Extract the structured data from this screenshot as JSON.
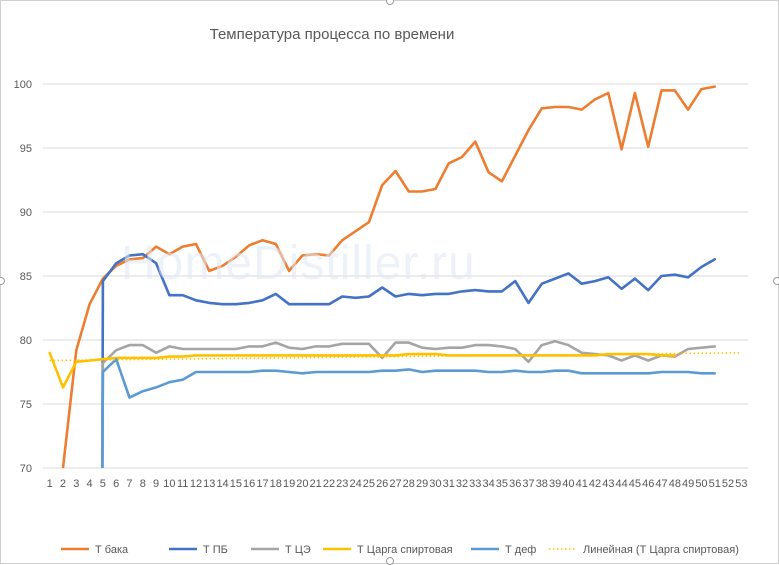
{
  "chart_data": {
    "type": "line",
    "title": "Температура процесса по времени",
    "xlabel": "",
    "ylabel": "",
    "x_ticks": [
      1,
      2,
      3,
      4,
      5,
      6,
      7,
      8,
      9,
      10,
      11,
      12,
      13,
      14,
      15,
      16,
      17,
      18,
      19,
      20,
      21,
      22,
      23,
      24,
      25,
      26,
      27,
      28,
      29,
      30,
      31,
      32,
      33,
      34,
      35,
      36,
      37,
      38,
      39,
      40,
      41,
      42,
      43,
      44,
      45,
      46,
      47,
      48,
      49,
      50,
      51,
      52,
      53
    ],
    "xlim": [
      1,
      53
    ],
    "ylim": [
      70,
      100
    ],
    "y_ticks": [
      70,
      75,
      80,
      85,
      90,
      95,
      100
    ],
    "grid": "horizontal",
    "legend_position": "bottom",
    "watermark": "HomeDistiller.ru",
    "series": [
      {
        "name": "Т бака",
        "color": "#ED7D31",
        "style": "solid",
        "values": [
          null,
          70,
          79.2,
          82.8,
          84.8,
          85.8,
          86.3,
          86.4,
          87.3,
          86.7,
          87.3,
          87.5,
          85.4,
          85.8,
          86.5,
          87.4,
          87.8,
          87.5,
          85.4,
          86.6,
          86.7,
          86.6,
          87.8,
          88.5,
          89.2,
          92.1,
          93.2,
          91.6,
          91.6,
          91.8,
          93.8,
          94.3,
          95.5,
          93.1,
          92.4,
          94.4,
          96.4,
          98.1,
          98.2,
          98.2,
          98.0,
          98.8,
          99.3,
          94.9,
          99.3,
          95.1,
          99.5,
          99.5,
          98.0,
          99.6,
          99.8
        ]
      },
      {
        "name": "Т ПБ",
        "color": "#4472C4",
        "style": "solid",
        "values": [
          null,
          null,
          null,
          null,
          84.6,
          86.0,
          86.6,
          86.7,
          86.0,
          83.5,
          83.5,
          83.1,
          82.9,
          82.8,
          82.8,
          82.9,
          83.1,
          83.6,
          82.8,
          82.8,
          82.8,
          82.8,
          83.4,
          83.3,
          83.4,
          84.1,
          83.4,
          83.6,
          83.5,
          83.6,
          83.6,
          83.8,
          83.9,
          83.8,
          83.8,
          84.6,
          82.9,
          84.4,
          84.8,
          85.2,
          84.4,
          84.6,
          84.9,
          84.0,
          84.8,
          83.9,
          85.0,
          85.1,
          84.9,
          85.7,
          86.3
        ]
      },
      {
        "name": "Т ЦЭ",
        "color": "#A5A5A5",
        "style": "solid",
        "values": [
          null,
          null,
          null,
          null,
          78.2,
          79.2,
          79.6,
          79.6,
          79.0,
          79.5,
          79.3,
          79.3,
          79.3,
          79.3,
          79.3,
          79.5,
          79.5,
          79.8,
          79.4,
          79.3,
          79.5,
          79.5,
          79.7,
          79.7,
          79.7,
          78.6,
          79.8,
          79.8,
          79.4,
          79.3,
          79.4,
          79.4,
          79.6,
          79.6,
          79.5,
          79.3,
          78.3,
          79.6,
          79.9,
          79.6,
          79.0,
          78.9,
          78.8,
          78.4,
          78.8,
          78.4,
          78.8,
          78.7,
          79.3,
          79.4,
          79.5
        ]
      },
      {
        "name": "Т Царга спиртовая",
        "color": "#FFC000",
        "style": "solid",
        "values": [
          79.0,
          76.3,
          78.3,
          78.4,
          78.5,
          78.6,
          78.6,
          78.6,
          78.6,
          78.7,
          78.7,
          78.8,
          78.8,
          78.8,
          78.8,
          78.8,
          78.8,
          78.8,
          78.8,
          78.8,
          78.8,
          78.8,
          78.8,
          78.8,
          78.8,
          78.8,
          78.8,
          78.9,
          78.9,
          78.9,
          78.8,
          78.8,
          78.8,
          78.8,
          78.8,
          78.8,
          78.8,
          78.8,
          78.8,
          78.8,
          78.8,
          78.8,
          78.9,
          78.9,
          78.9,
          78.9,
          78.8,
          78.8,
          null,
          null,
          null
        ]
      },
      {
        "name": "Т деф",
        "color": "#5B9BD5",
        "style": "solid",
        "values": [
          null,
          null,
          null,
          null,
          77.5,
          78.5,
          75.5,
          76.0,
          76.3,
          76.7,
          76.9,
          77.5,
          77.5,
          77.5,
          77.5,
          77.5,
          77.6,
          77.6,
          77.5,
          77.4,
          77.5,
          77.5,
          77.5,
          77.5,
          77.5,
          77.6,
          77.6,
          77.7,
          77.5,
          77.6,
          77.6,
          77.6,
          77.6,
          77.5,
          77.5,
          77.6,
          77.5,
          77.5,
          77.6,
          77.6,
          77.4,
          77.4,
          77.4,
          77.4,
          77.4,
          77.4,
          77.5,
          77.5,
          77.5,
          77.4,
          77.4
        ]
      },
      {
        "name": "Линейная (Т Царга спиртовая)",
        "color": "#FFC000",
        "style": "dotted",
        "trend": {
          "x_start": 1,
          "y_start": 78.4,
          "x_end": 53,
          "y_end": 79.0
        }
      }
    ]
  }
}
